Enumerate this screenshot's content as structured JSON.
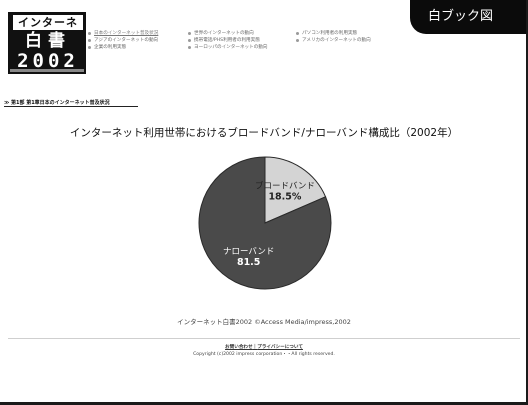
{
  "corner_tab": {
    "label": "白ブック図"
  },
  "logo": {
    "line1": "インターネット",
    "line2": "白書",
    "line3": "2002"
  },
  "menu": {
    "col1": [
      "日本のインターネット普及状況",
      "アジアのインターネットの動向",
      "企業の利用実態"
    ],
    "col2": [
      "世界のインターネットの動向",
      "携帯電話/PHS利用者の利用実態",
      "ヨーロッパのインターネットの動向"
    ],
    "col3": [
      "パソコン利用者の利用実態",
      "アメリカのインターネットの動向"
    ]
  },
  "breadcrumb": "≫ 第1部 第1章日本のインターネット普及状況",
  "chart_title": "インターネット利用世帯におけるブロードバンド/ナローバンド構成比（2002年）",
  "chart_data": {
    "type": "pie",
    "title": "インターネット利用世帯におけるブロードバンド/ナローバンド構成比（2002年）",
    "slices": [
      {
        "label": "ブロードバンド",
        "value": 18.5,
        "value_label": "18.5%",
        "color": "#d4d4d4",
        "text_color": "#222222"
      },
      {
        "label": "ナローバンド",
        "value": 81.5,
        "value_label": "81.5",
        "color": "#4a4a4a",
        "text_color": "#ffffff"
      }
    ]
  },
  "credit": "インターネット白書2002 ©Access Media/impress,2002",
  "footer": {
    "links": [
      "お問い合わせ",
      "プライバシーについて"
    ],
    "separator": "｜",
    "copyright": "Copyright (c)2002 impress corporation・・All rights reserved."
  }
}
